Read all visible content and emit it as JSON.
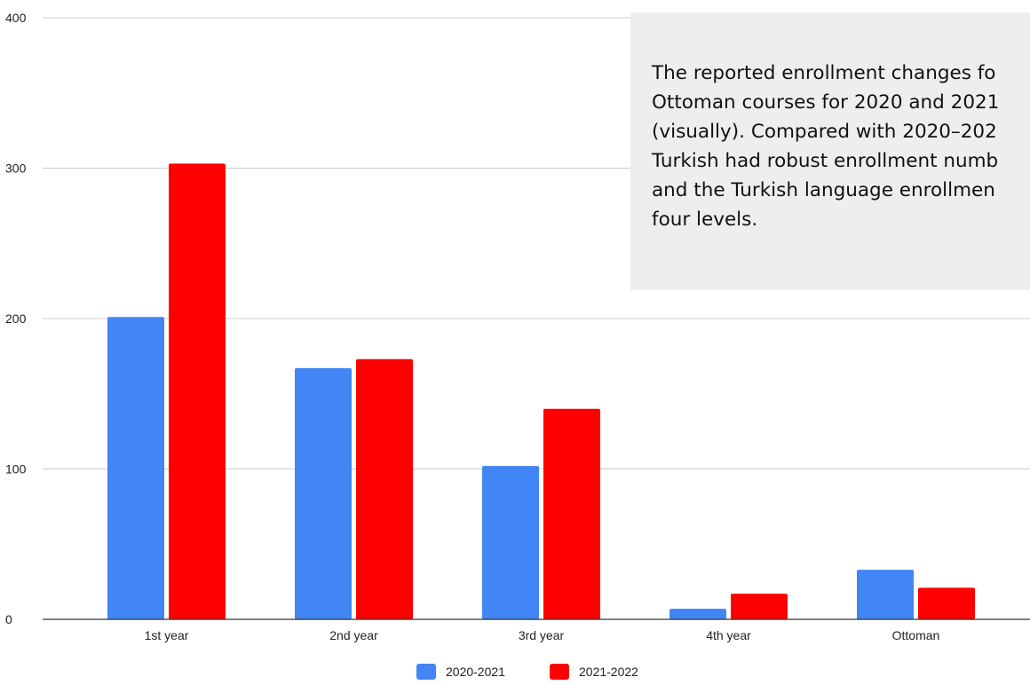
{
  "chart_data": {
    "type": "bar",
    "categories": [
      "1st year",
      "2nd year",
      "3rd year",
      "4th year",
      "Ottoman"
    ],
    "series": [
      {
        "name": "2020-2021",
        "values": [
          201,
          167,
          102,
          7,
          33
        ],
        "color": "#4285f4"
      },
      {
        "name": "2021-2022",
        "values": [
          303,
          173,
          140,
          17,
          21
        ],
        "color": "#ff0000"
      }
    ],
    "y_ticks": [
      0,
      100,
      200,
      300,
      400
    ],
    "ylim": [
      0,
      400
    ],
    "grid": true,
    "legend_position": "bottom-center",
    "title": "",
    "xlabel": "",
    "ylabel": ""
  },
  "note": {
    "lines": [
      "The reported enrollment changes fo",
      "Ottoman courses for 2020 and 2021",
      "(visually). Compared with 2020–202",
      "Turkish had robust enrollment numb",
      "and the Turkish language enrollmen",
      "four levels."
    ]
  }
}
